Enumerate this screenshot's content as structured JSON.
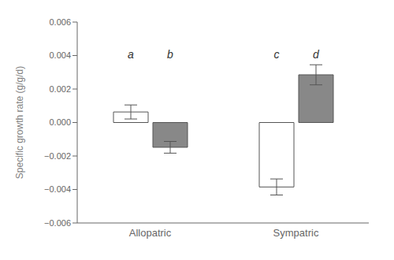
{
  "chart_data": {
    "type": "bar",
    "y_label": "Specific growth rate (g/g/d)",
    "categories": [
      "Allopatric",
      "Sympatric"
    ],
    "series": [
      {
        "color": "white",
        "values": [
          0.00063,
          -0.00385
        ],
        "errors": [
          0.00042,
          0.00048
        ],
        "annotations": [
          "a",
          "c"
        ]
      },
      {
        "color": "#888888",
        "values": [
          -0.00148,
          0.00285
        ],
        "errors": [
          0.00035,
          0.0006
        ],
        "annotations": [
          "b",
          "d"
        ]
      }
    ],
    "ylim": [
      -0.006,
      0.006
    ],
    "yticks": [
      {
        "value": -0.006,
        "label": "−0.006"
      },
      {
        "value": -0.004,
        "label": "−0.004"
      },
      {
        "value": -0.002,
        "label": "−0.002"
      },
      {
        "value": 0,
        "label": "0.000"
      },
      0.002,
      0.004,
      0.006
    ],
    "grid": false
  }
}
